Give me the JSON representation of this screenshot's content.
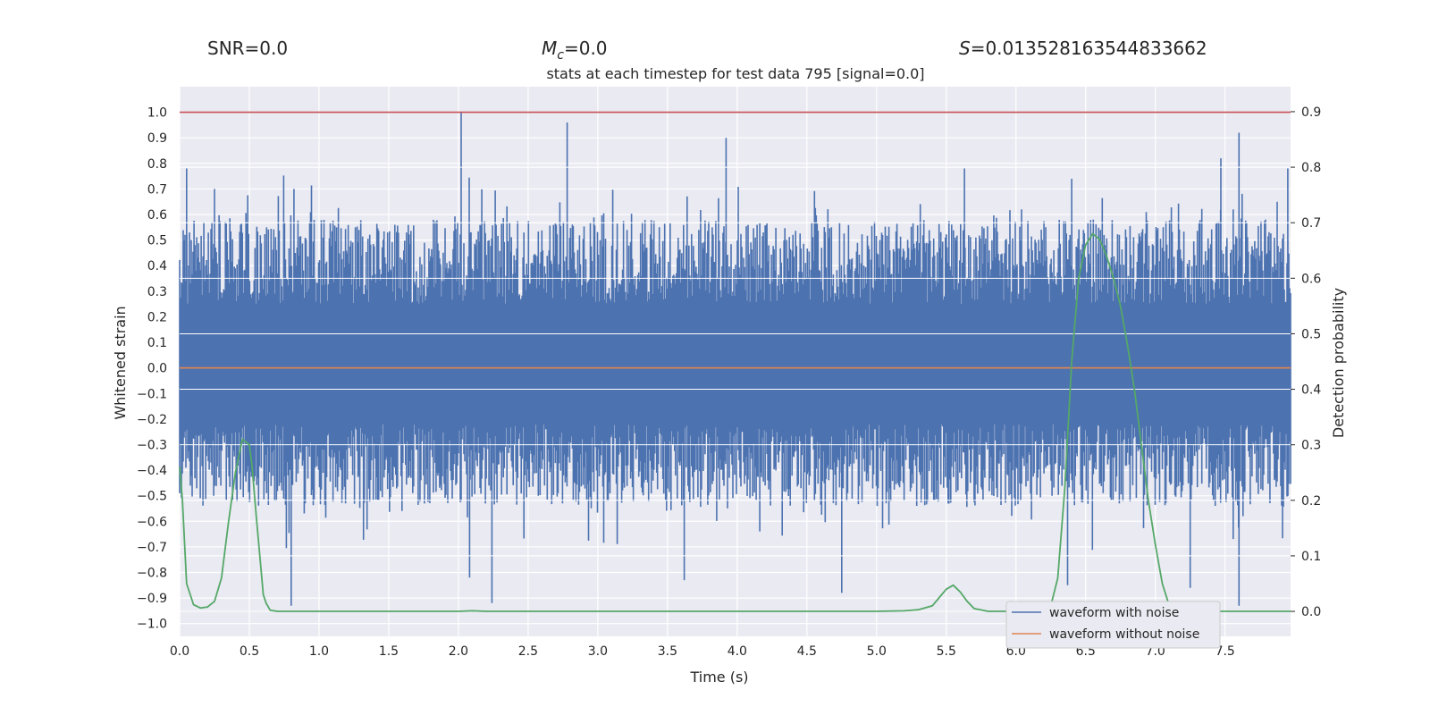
{
  "stats": {
    "snr": "SNR=0.0",
    "mc_symbol": "M",
    "mc_sub": "c",
    "mc_value": "=0.0",
    "s_symbol": "S",
    "s_value": "=0.013528163544833662"
  },
  "chart_data": {
    "type": "line",
    "title": "stats at each timestep for test data 795 [signal=0.0]",
    "xlabel": "Time (s)",
    "ylabel": "Whitened strain",
    "ylabel_right": "Detection probability",
    "xlim": [
      0.0,
      7.97
    ],
    "ylim": [
      -1.05,
      1.1
    ],
    "ylim_right": [
      -0.045,
      0.945
    ],
    "x_ticks": [
      "0.0",
      "0.5",
      "1.0",
      "1.5",
      "2.0",
      "2.5",
      "3.0",
      "3.5",
      "4.0",
      "4.5",
      "5.0",
      "5.5",
      "6.0",
      "6.5",
      "7.0",
      "7.5"
    ],
    "y_ticks": [
      "1.0",
      "0.9",
      "0.8",
      "0.7",
      "0.6",
      "0.5",
      "0.4",
      "0.3",
      "0.2",
      "0.1",
      "0.0",
      "−0.1",
      "−0.2",
      "−0.3",
      "−0.4",
      "−0.5",
      "−0.6",
      "−0.7",
      "−0.8",
      "−0.9",
      "−1.0"
    ],
    "y_ticks_right": [
      "0.9",
      "0.8",
      "0.7",
      "0.6",
      "0.5",
      "0.4",
      "0.3",
      "0.2",
      "0.1",
      "0.0"
    ],
    "threshold": 1.0,
    "noisy_waveform": {
      "name": "waveform with noise",
      "amplitude_range": [
        -1.0,
        1.0
      ],
      "peaks_up": [
        [
          0.05,
          0.78
        ],
        [
          0.25,
          0.7
        ],
        [
          0.82,
          0.7
        ],
        [
          2.02,
          1.0
        ],
        [
          2.78,
          0.96
        ],
        [
          3.92,
          0.9
        ],
        [
          5.63,
          0.78
        ],
        [
          6.4,
          0.74
        ],
        [
          7.47,
          0.82
        ],
        [
          7.6,
          0.92
        ],
        [
          7.95,
          0.78
        ]
      ],
      "peaks_down": [
        [
          0.8,
          -0.93
        ],
        [
          2.08,
          -0.82
        ],
        [
          2.24,
          -0.92
        ],
        [
          3.62,
          -0.83
        ],
        [
          4.75,
          -0.88
        ],
        [
          6.37,
          -0.85
        ],
        [
          7.25,
          -0.86
        ],
        [
          7.6,
          -0.93
        ]
      ]
    },
    "clean_waveform": {
      "name": "waveform without noise",
      "value": 0.0
    },
    "probability": {
      "name": "detection probability",
      "x": [
        0.0,
        0.02,
        0.05,
        0.1,
        0.15,
        0.2,
        0.25,
        0.3,
        0.35,
        0.4,
        0.45,
        0.5,
        0.52,
        0.55,
        0.6,
        0.62,
        0.65,
        0.7,
        0.8,
        1.0,
        2.0,
        2.1,
        2.2,
        3.0,
        4.0,
        5.0,
        5.2,
        5.3,
        5.4,
        5.45,
        5.5,
        5.55,
        5.6,
        5.65,
        5.7,
        5.8,
        6.0,
        6.25,
        6.3,
        6.35,
        6.4,
        6.45,
        6.5,
        6.55,
        6.6,
        6.65,
        6.7,
        6.75,
        6.8,
        6.85,
        6.9,
        6.95,
        7.0,
        7.05,
        7.1,
        7.2,
        7.5,
        7.97
      ],
      "y": [
        0.26,
        0.2,
        0.05,
        0.012,
        0.006,
        0.008,
        0.018,
        0.06,
        0.16,
        0.25,
        0.31,
        0.3,
        0.26,
        0.17,
        0.03,
        0.015,
        0.002,
        0.0,
        0.0,
        0.0,
        0.0,
        0.001,
        0.0,
        0.0,
        0.0,
        0.0,
        0.001,
        0.003,
        0.01,
        0.025,
        0.04,
        0.047,
        0.035,
        0.018,
        0.005,
        0.0,
        0.0,
        0.01,
        0.06,
        0.22,
        0.45,
        0.6,
        0.66,
        0.68,
        0.67,
        0.64,
        0.6,
        0.55,
        0.48,
        0.4,
        0.3,
        0.2,
        0.12,
        0.05,
        0.01,
        0.0,
        0.0,
        0.0
      ]
    },
    "legend": {
      "position": "lower-right",
      "entries": [
        {
          "label": "waveform with noise",
          "color": "#4c72b0"
        },
        {
          "label": "waveform without noise",
          "color": "#dd8452"
        }
      ]
    },
    "colors": {
      "noisy": "#4c72b0",
      "clean": "#dd8452",
      "probability": "#55a868",
      "threshold": "#c44e52",
      "background": "#eaeaf2",
      "grid": "#ffffff"
    }
  }
}
